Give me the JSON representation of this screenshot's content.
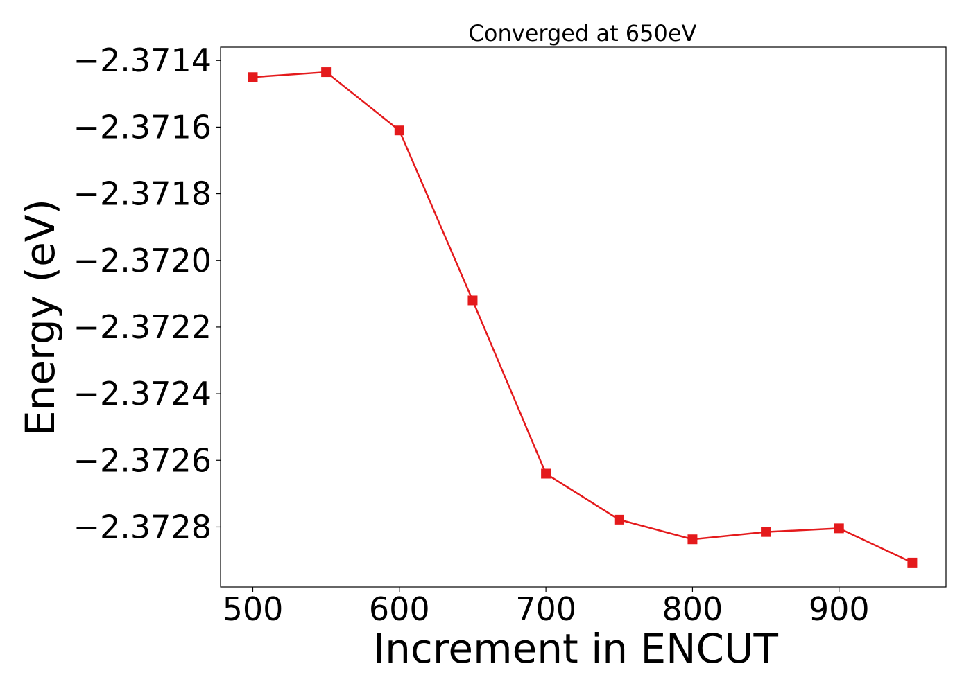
{
  "chart_data": {
    "type": "line",
    "title": "Converged at 650eV",
    "xlabel": "Increment in ENCUT",
    "ylabel": "Energy (eV)",
    "x": [
      500,
      550,
      600,
      650,
      700,
      750,
      800,
      850,
      900,
      950
    ],
    "series": [
      {
        "values": [
          -2.37145,
          -2.371435,
          -2.37161,
          -2.37212,
          -2.37264,
          -2.372778,
          -2.372837,
          -2.372815,
          -2.372804,
          -2.372907
        ],
        "color": "#e41a1c",
        "marker": "square"
      }
    ],
    "xlim": [
      478,
      973
    ],
    "ylim": [
      -2.37298,
      -2.37136
    ],
    "xticks": [
      500,
      600,
      700,
      800,
      900
    ],
    "xtick_labels": [
      "500",
      "600",
      "700",
      "800",
      "900"
    ],
    "yticks": [
      -2.3714,
      -2.3716,
      -2.3718,
      -2.372,
      -2.3722,
      -2.3724,
      -2.3726,
      -2.3728
    ],
    "ytick_labels": [
      "−2.3714",
      "−2.3716",
      "−2.3718",
      "−2.3720",
      "−2.3722",
      "−2.3724",
      "−2.3726",
      "−2.3728"
    ],
    "grid": false,
    "legend": "none"
  }
}
